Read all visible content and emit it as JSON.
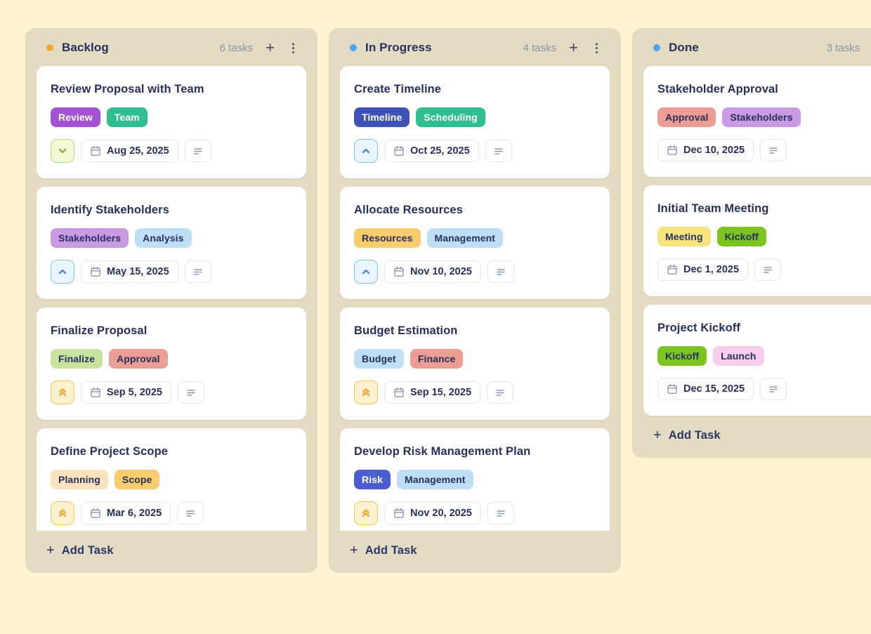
{
  "colors": {
    "page_bg": "#fdf3d0",
    "column_bg": "#e3dcc2",
    "card_bg": "#ffffff",
    "title_text": "#262f5e",
    "muted_text": "#8b8fa6",
    "chip_border": "#e2e5f3",
    "chip_icon": "#8d96bb"
  },
  "priorities": {
    "low": {
      "icon_name": "priority-low-chevron-down-icon",
      "bg": "#f0f8d6",
      "border": "#b9dd70",
      "color": "#6fae14"
    },
    "medium": {
      "icon_name": "priority-medium-chevron-up-icon",
      "bg": "#e9f4fd",
      "border": "#82c3f5",
      "color": "#2f80ef"
    },
    "high": {
      "icon_name": "priority-high-double-chevron-up-icon",
      "bg": "#fdf1d1",
      "border": "#f7c54e",
      "color": "#f0a11c"
    }
  },
  "board": {
    "columns": [
      {
        "name": "Backlog",
        "dot_color": "#f5a43c",
        "count_label": "6 tasks",
        "add_icon": "+",
        "menu_icon": "⋮",
        "add_task_label": "Add Task",
        "clipped": true,
        "tasks": [
          {
            "title": "Review Proposal with Team",
            "tags": [
              {
                "label": "Review",
                "bg": "#a352d4",
                "fg": "#ffffff"
              },
              {
                "label": "Team",
                "bg": "#2ebe8f",
                "fg": "#ffffff"
              }
            ],
            "priority": "low",
            "due": "Aug 25, 2025"
          },
          {
            "title": "Identify Stakeholders",
            "tags": [
              {
                "label": "Stakeholders",
                "bg": "#ca9ae4",
                "fg": "#262f5e"
              },
              {
                "label": "Analysis",
                "bg": "#bfdff7",
                "fg": "#262f5e"
              }
            ],
            "priority": "medium",
            "due": "May 15, 2025"
          },
          {
            "title": "Finalize Proposal",
            "tags": [
              {
                "label": "Finalize",
                "bg": "#c7e39c",
                "fg": "#262f5e"
              },
              {
                "label": "Approval",
                "bg": "#ec9d94",
                "fg": "#262f5e"
              }
            ],
            "priority": "high",
            "due": "Sep 5, 2025"
          },
          {
            "title": "Define Project Scope",
            "tags": [
              {
                "label": "Planning",
                "bg": "#fbe3bd",
                "fg": "#262f5e"
              },
              {
                "label": "Scope",
                "bg": "#f8cb6d",
                "fg": "#262f5e"
              }
            ],
            "priority": "high",
            "due": "Mar 6, 2025"
          }
        ]
      },
      {
        "name": "In Progress",
        "dot_color": "#4da3f0",
        "count_label": "4 tasks",
        "add_icon": "+",
        "menu_icon": "⋮",
        "add_task_label": "Add Task",
        "clipped": true,
        "tasks": [
          {
            "title": "Create Timeline",
            "tags": [
              {
                "label": "Timeline",
                "bg": "#3f52b8",
                "fg": "#ffffff"
              },
              {
                "label": "Scheduling",
                "bg": "#2ebe8f",
                "fg": "#ffffff"
              }
            ],
            "priority": "medium",
            "due": "Oct 25, 2025"
          },
          {
            "title": "Allocate Resources",
            "tags": [
              {
                "label": "Resources",
                "bg": "#f8cb6d",
                "fg": "#262f5e"
              },
              {
                "label": "Management",
                "bg": "#bfdff7",
                "fg": "#262f5e"
              }
            ],
            "priority": "medium",
            "due": "Nov 10, 2025"
          },
          {
            "title": "Budget Estimation",
            "tags": [
              {
                "label": "Budget",
                "bg": "#bfdff7",
                "fg": "#262f5e"
              },
              {
                "label": "Finance",
                "bg": "#ec9d94",
                "fg": "#262f5e"
              }
            ],
            "priority": "high",
            "due": "Sep 15, 2025"
          },
          {
            "title": "Develop Risk Management Plan",
            "tags": [
              {
                "label": "Risk",
                "bg": "#4a5ed0",
                "fg": "#ffffff"
              },
              {
                "label": "Management",
                "bg": "#bfdff7",
                "fg": "#262f5e"
              }
            ],
            "priority": "high",
            "due": "Nov 20, 2025"
          }
        ]
      },
      {
        "name": "Done",
        "dot_color": "#4da3f0",
        "count_label": "3 tasks",
        "add_icon": "+",
        "menu_icon": "⋮",
        "add_task_label": "Add Task",
        "clipped": false,
        "tasks": [
          {
            "title": "Stakeholder Approval",
            "tags": [
              {
                "label": "Approval",
                "bg": "#ec9d94",
                "fg": "#262f5e"
              },
              {
                "label": "Stakeholders",
                "bg": "#ca9ae4",
                "fg": "#262f5e"
              }
            ],
            "priority": null,
            "due": "Dec 10, 2025"
          },
          {
            "title": "Initial Team Meeting",
            "tags": [
              {
                "label": "Meeting",
                "bg": "#f8e47e",
                "fg": "#262f5e"
              },
              {
                "label": "Kickoff",
                "bg": "#7cc41f",
                "fg": "#262f5e"
              }
            ],
            "priority": null,
            "due": "Dec 1, 2025"
          },
          {
            "title": "Project Kickoff",
            "tags": [
              {
                "label": "Kickoff",
                "bg": "#7cc41f",
                "fg": "#262f5e"
              },
              {
                "label": "Launch",
                "bg": "#f6cdec",
                "fg": "#262f5e"
              }
            ],
            "priority": null,
            "due": "Dec 15, 2025"
          }
        ]
      }
    ]
  }
}
